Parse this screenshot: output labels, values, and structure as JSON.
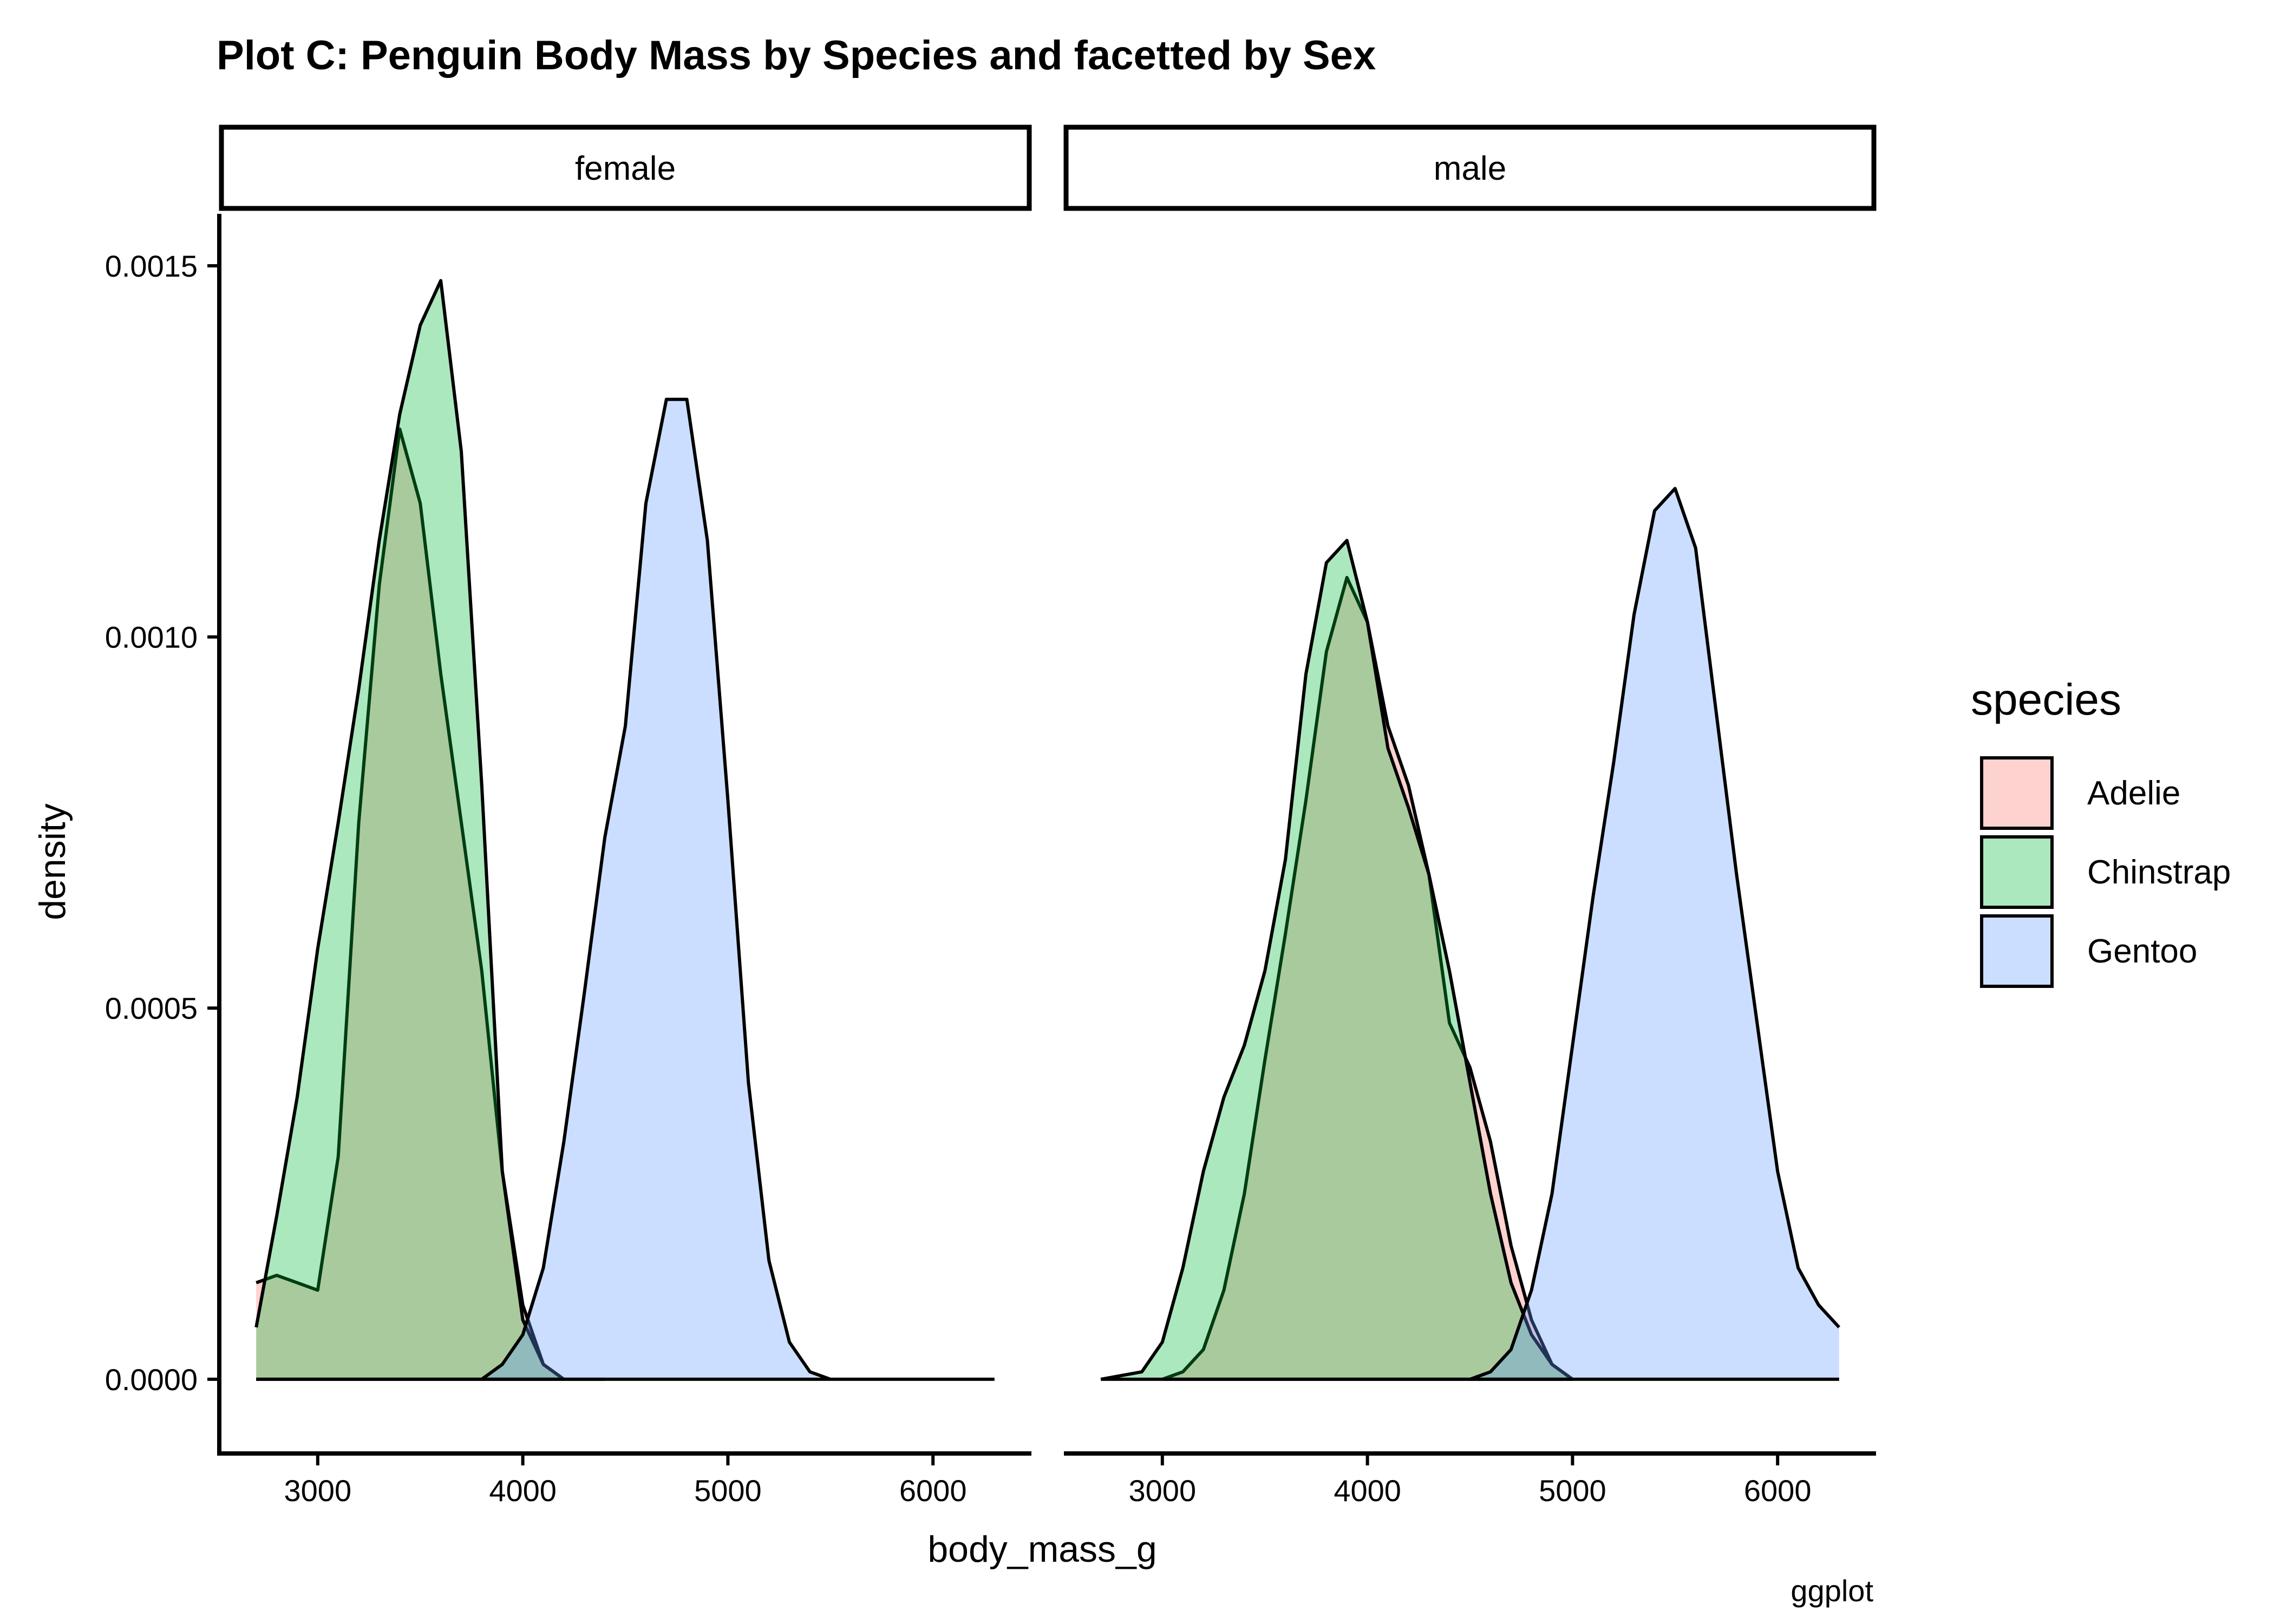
{
  "chart_data": {
    "type": "area",
    "subtype": "density",
    "title": "Plot C: Penguin Body Mass by Species and facetted by Sex",
    "xlabel": "body_mass_g",
    "ylabel": "density",
    "caption": "ggplot",
    "xlim": [
      2520,
      6480
    ],
    "ylim": [
      -0.0001,
      0.00157
    ],
    "x_ticks": [
      3000,
      4000,
      5000,
      6000
    ],
    "y_ticks": [
      0.0,
      0.0005,
      0.001,
      0.0015
    ],
    "y_tick_labels": [
      "0.0000",
      "0.0005",
      "0.0010",
      "0.0015"
    ],
    "legend": {
      "title": "species",
      "position": "right",
      "entries": [
        {
          "name": "Adelie",
          "color": "#F8766D"
        },
        {
          "name": "Chinstrap",
          "color": "#00BA38"
        },
        {
          "name": "Gentoo",
          "color": "#619CFF"
        }
      ]
    },
    "fill_opacity": 0.33,
    "facets": [
      {
        "label": "female",
        "series": [
          {
            "name": "Adelie",
            "x": [
              2700,
              2800,
              2900,
              3000,
              3100,
              3200,
              3300,
              3400,
              3500,
              3600,
              3700,
              3800,
              3900,
              4000,
              4100,
              4200
            ],
            "y": [
              0.00013,
              0.00014,
              0.00013,
              0.00012,
              0.0003,
              0.00075,
              0.00107,
              0.00128,
              0.00118,
              0.00095,
              0.00075,
              0.00055,
              0.00028,
              0.0001,
              2e-05,
              0.0
            ]
          },
          {
            "name": "Chinstrap",
            "x": [
              2700,
              2800,
              2900,
              3000,
              3100,
              3200,
              3300,
              3400,
              3500,
              3600,
              3700,
              3800,
              3900,
              4000,
              4100,
              4200,
              4400
            ],
            "y": [
              7e-05,
              0.00022,
              0.00038,
              0.00058,
              0.00075,
              0.00093,
              0.00113,
              0.0013,
              0.00142,
              0.00148,
              0.00125,
              0.0008,
              0.00028,
              8e-05,
              2e-05,
              0.0,
              0.0
            ]
          },
          {
            "name": "Gentoo",
            "x": [
              3800,
              3900,
              4000,
              4100,
              4200,
              4300,
              4400,
              4500,
              4600,
              4700,
              4800,
              4900,
              5000,
              5100,
              5200,
              5300,
              5400,
              5500,
              6300
            ],
            "y": [
              0.0,
              2e-05,
              6e-05,
              0.00015,
              0.00032,
              0.00052,
              0.00073,
              0.00088,
              0.00118,
              0.00132,
              0.00132,
              0.00113,
              0.00078,
              0.0004,
              0.00016,
              5e-05,
              1e-05,
              0.0,
              0.0
            ]
          }
        ]
      },
      {
        "label": "male",
        "series": [
          {
            "name": "Adelie",
            "x": [
              3000,
              3100,
              3200,
              3300,
              3400,
              3500,
              3600,
              3700,
              3800,
              3900,
              4000,
              4100,
              4200,
              4300,
              4400,
              4500,
              4600,
              4700,
              4800,
              4900,
              5000
            ],
            "y": [
              0.0,
              1e-05,
              4e-05,
              0.00012,
              0.00025,
              0.00043,
              0.0006,
              0.00078,
              0.00098,
              0.00108,
              0.00102,
              0.00088,
              0.0008,
              0.00068,
              0.00048,
              0.00042,
              0.00032,
              0.00018,
              8e-05,
              2e-05,
              0.0
            ]
          },
          {
            "name": "Chinstrap",
            "x": [
              2700,
              2900,
              3000,
              3100,
              3200,
              3300,
              3400,
              3500,
              3600,
              3700,
              3800,
              3900,
              4000,
              4100,
              4200,
              4300,
              4400,
              4500,
              4600,
              4700,
              4800,
              4900,
              5000
            ],
            "y": [
              0.0,
              1e-05,
              5e-05,
              0.00015,
              0.00028,
              0.00038,
              0.00045,
              0.00055,
              0.0007,
              0.00095,
              0.0011,
              0.00113,
              0.00102,
              0.00085,
              0.00077,
              0.00068,
              0.00055,
              0.0004,
              0.00025,
              0.00013,
              6e-05,
              2e-05,
              0.0
            ]
          },
          {
            "name": "Gentoo",
            "x": [
              4500,
              4600,
              4700,
              4800,
              4900,
              5000,
              5100,
              5200,
              5300,
              5400,
              5500,
              5600,
              5700,
              5800,
              5900,
              6000,
              6100,
              6200,
              6300
            ],
            "y": [
              0.0,
              1e-05,
              4e-05,
              0.00012,
              0.00025,
              0.00045,
              0.00065,
              0.00083,
              0.00103,
              0.00117,
              0.0012,
              0.00112,
              0.0009,
              0.00068,
              0.00048,
              0.00028,
              0.00015,
              0.0001,
              7e-05
            ]
          }
        ]
      }
    ]
  }
}
